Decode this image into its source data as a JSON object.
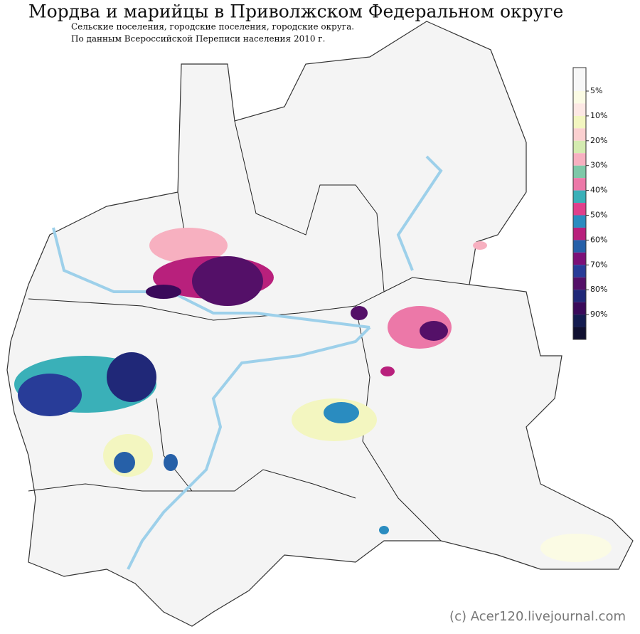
{
  "header": {
    "title": "Мордва и марийцы в Приволжском Федеральном округе",
    "subtitle_lines": [
      "Сельские поселения, городские поселения, городские округа.",
      "По данным Всероссийской Переписи населения 2010 г."
    ]
  },
  "legend": {
    "labels": [
      "5%",
      "10%",
      "20%",
      "30%",
      "40%",
      "50%",
      "60%",
      "70%",
      "80%",
      "90%"
    ],
    "colors": [
      "#f7f7f7",
      "#fbfbe4",
      "#fde8e4",
      "#f3f6c0",
      "#fbd0d0",
      "#d4ebb0",
      "#f7b0c0",
      "#7ec8a8",
      "#ec78a8",
      "#3ab0b8",
      "#e0408c",
      "#2a8cc0",
      "#b8207c",
      "#2660a8",
      "#7c1078",
      "#283c98",
      "#541068",
      "#202878",
      "#3a0a5a",
      "#141c50",
      "#101030"
    ]
  },
  "credit": "(c) Acer120.livejournal.com"
}
